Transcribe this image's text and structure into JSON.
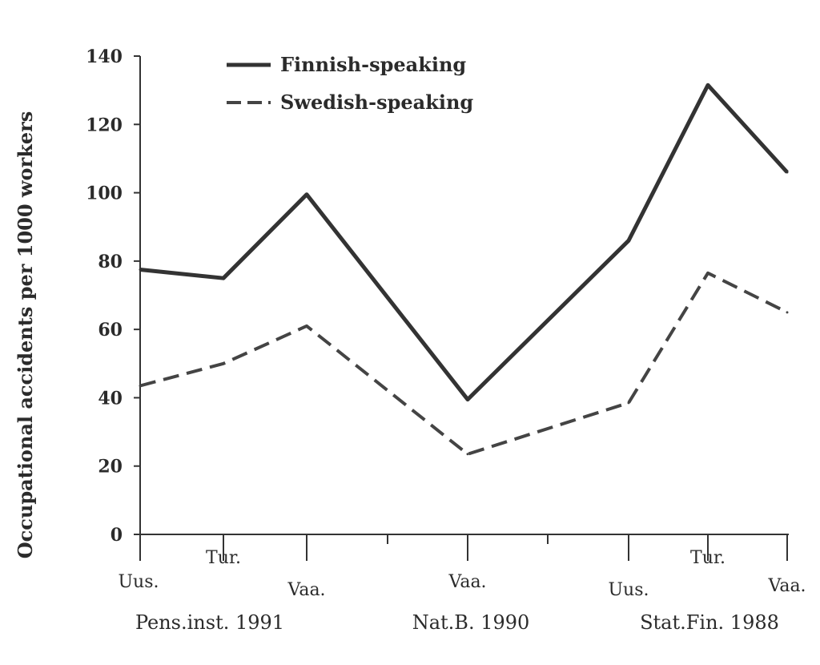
{
  "chart_data": {
    "type": "line",
    "ylabel": "Occupational accidents per 1000 workers",
    "xlabel": "",
    "ylim": [
      0,
      140
    ],
    "yticks": [
      0,
      20,
      40,
      60,
      80,
      100,
      120,
      140
    ],
    "grid": false,
    "legend_position": "top-left",
    "categories": [
      "Uus.",
      "Tur.",
      "Vaa.",
      "Vaa.",
      "Uus.",
      "Tur.",
      "Vaa."
    ],
    "groups": [
      {
        "label": "Pens.inst. 1991",
        "categories": [
          "Uus.",
          "Tur.",
          "Vaa."
        ]
      },
      {
        "label": "Nat.B. 1990",
        "categories": [
          "Vaa."
        ]
      },
      {
        "label": "Stat.Fin. 1988",
        "categories": [
          "Uus.",
          "Tur.",
          "Vaa."
        ]
      }
    ],
    "series": [
      {
        "name": "Finnish-speaking",
        "style": "solid",
        "color": "#333333",
        "values": [
          77.5,
          75,
          99.5,
          39.5,
          86,
          131.5,
          106
        ]
      },
      {
        "name": "Swedish-speaking",
        "style": "dashed",
        "color": "#444444",
        "values": [
          43.5,
          50,
          61,
          23.5,
          38.5,
          76.5,
          65
        ]
      }
    ]
  }
}
